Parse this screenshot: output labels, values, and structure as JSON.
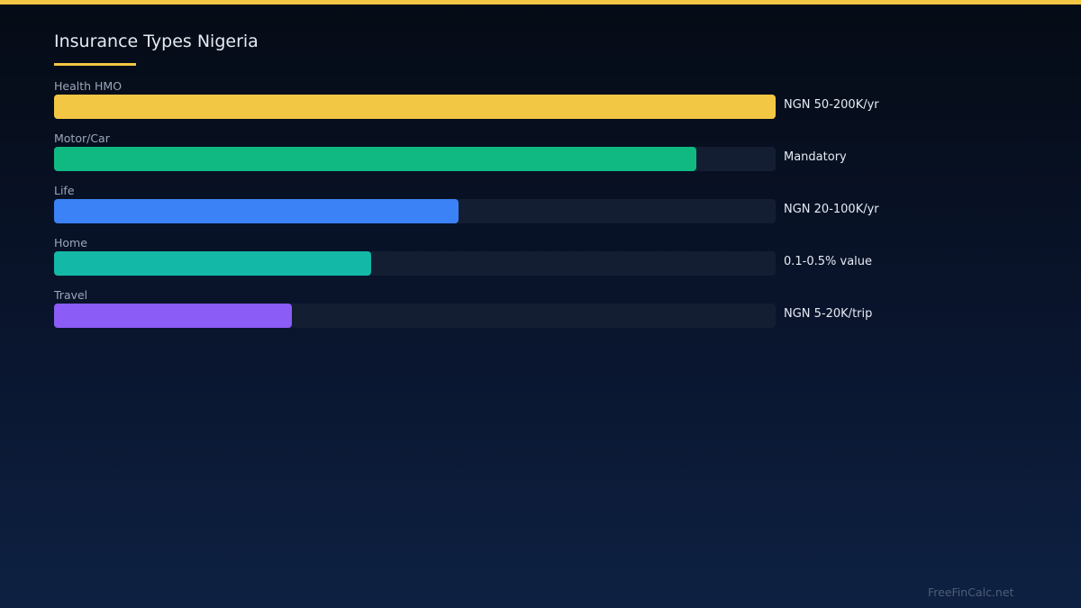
{
  "colors": {
    "accent": "#f2c744",
    "track": "#141e33"
  },
  "chart_data": {
    "type": "bar",
    "orientation": "horizontal",
    "title": "Insurance Types Nigeria",
    "categories": [
      "Health HMO",
      "Motor/Car",
      "Life",
      "Home",
      "Travel"
    ],
    "values": [
      100,
      89,
      56,
      44,
      33
    ],
    "value_labels": [
      "NGN 50-200K/yr",
      "Mandatory",
      "NGN 20-100K/yr",
      "0.1-0.5% value",
      "NGN 5-20K/trip"
    ],
    "bar_colors": [
      "#f2c744",
      "#10b981",
      "#3b82f6",
      "#14b8a6",
      "#8b5cf6"
    ],
    "xlim": [
      0,
      100
    ],
    "grid": false,
    "legend": "none"
  },
  "watermark": "FreeFinCalc.net"
}
